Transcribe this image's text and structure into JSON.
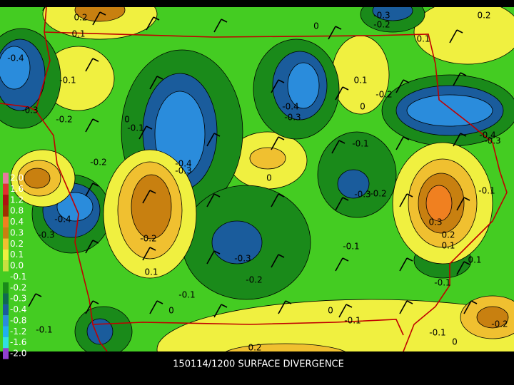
{
  "title": "150114/1200 SURFACE DIVERGENCE",
  "legend": [
    {
      "label": "2.0",
      "color": "#e878a0"
    },
    {
      "label": "1.6",
      "color": "#e03030"
    },
    {
      "label": "1.2",
      "color": "#b01010"
    },
    {
      "label": "0.8",
      "color": "#a03000"
    },
    {
      "label": "0.4",
      "color": "#f08020"
    },
    {
      "label": "0.3",
      "color": "#c88010"
    },
    {
      "label": "0.2",
      "color": "#f0c030"
    },
    {
      "label": "0.1",
      "color": "#f0f040"
    },
    {
      "label": "0.0",
      "color": "#c8e040"
    },
    {
      "label": "-0.1",
      "color": "#44cc22"
    },
    {
      "label": "-0.2",
      "color": "#1a8a1a"
    },
    {
      "label": "-0.3",
      "color": "#0f6a50"
    },
    {
      "label": "-0.4",
      "color": "#1a5c9c"
    },
    {
      "label": "-0.8",
      "color": "#2a8cdc"
    },
    {
      "label": "-1.2",
      "color": "#20b0f0"
    },
    {
      "label": "-1.6",
      "color": "#30e0e0"
    },
    {
      "label": "-2.0",
      "color": "#9040d0"
    }
  ],
  "contour_labels": [
    "-0.4",
    "-0.1",
    "-0.3",
    "-0.2",
    "0",
    "-0.1",
    "-0.4",
    "-0.3",
    "0.2",
    "0.1",
    "-0.4",
    "-0.3",
    "0.1",
    "0",
    "-0.2",
    "-0.4",
    "-0.3",
    "0.2",
    "0.1",
    "-0.3",
    "-0.2",
    "0",
    "-0.1",
    "0",
    "-0.3",
    "-0.2",
    "-0.1",
    "0.3",
    "0.2",
    "0.1",
    "-0.1",
    "-0.4",
    "-0.3",
    "-0.2",
    "-0.2",
    "0.1",
    "-0.3",
    "-0.2",
    "-0.1",
    "0",
    "0",
    "-0.1",
    "-0.1",
    "0.1",
    "-0.1",
    "0",
    "-0.2",
    "-0.1",
    "0.2"
  ]
}
